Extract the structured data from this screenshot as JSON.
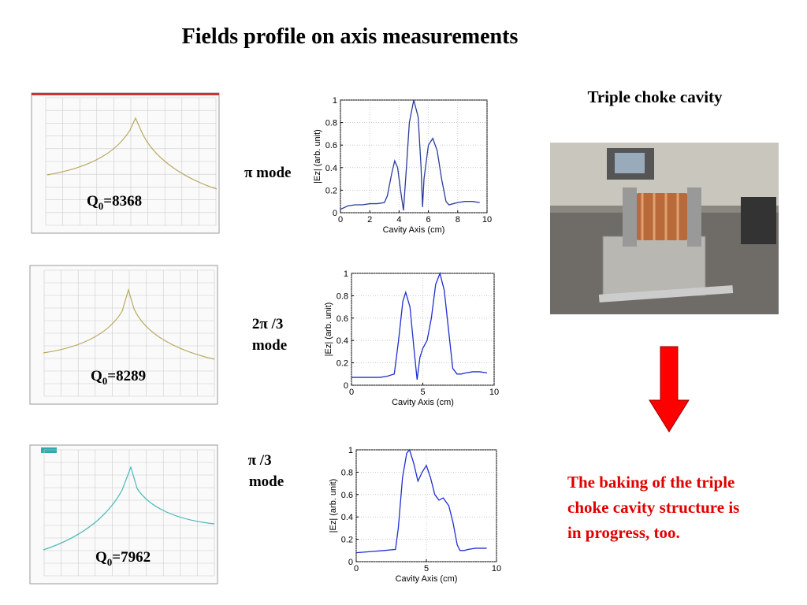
{
  "title": "Fields profile on axis measurements",
  "cavity_title": "Triple choke cavity",
  "modes": [
    {
      "label_lines": [
        "π mode"
      ],
      "q": {
        "symbol": "Q",
        "sub": "0",
        "value": "=8368"
      }
    },
    {
      "label_lines": [
        "2π /3",
        "mode"
      ],
      "q": {
        "symbol": "Q",
        "sub": "0",
        "value": "=8289"
      }
    },
    {
      "label_lines": [
        "π /3",
        "mode"
      ],
      "q": {
        "symbol": "Q",
        "sub": "0",
        "value": "=7962"
      }
    }
  ],
  "note_lines": [
    "The baking of the triple",
    "choke cavity structure is",
    "in progress, too."
  ],
  "chart_data": [
    {
      "type": "line",
      "xlabel": "Cavity Axis (cm)",
      "ylabel": "|Ez| (arb. unit)",
      "x": [
        0,
        0.5,
        1,
        1.5,
        2,
        2.5,
        3,
        3.2,
        3.5,
        3.7,
        3.9,
        4.1,
        4.3,
        4.5,
        4.7,
        5,
        5.3,
        5.5,
        5.6,
        5.7,
        6,
        6.3,
        6.6,
        6.9,
        7.2,
        7.4,
        7.7,
        8,
        8.5,
        9,
        9.5
      ],
      "series": [
        {
          "color": "#2b3c9c",
          "values": [
            0.03,
            0.06,
            0.07,
            0.07,
            0.08,
            0.08,
            0.09,
            0.15,
            0.35,
            0.46,
            0.4,
            0.2,
            0.02,
            0.4,
            0.8,
            1.0,
            0.85,
            0.4,
            0.05,
            0.3,
            0.6,
            0.66,
            0.55,
            0.3,
            0.1,
            0.07,
            0.08,
            0.09,
            0.1,
            0.1,
            0.09
          ]
        }
      ],
      "xlim": [
        0,
        10
      ],
      "ylim": [
        0,
        1
      ],
      "xticks": [
        0,
        2,
        4,
        6,
        8,
        10
      ],
      "yticks": [
        0,
        0.2,
        0.4,
        0.6,
        0.8,
        1
      ],
      "grid": true
    },
    {
      "type": "line",
      "xlabel": "Cavity Axis (cm)",
      "ylabel": "|Ez| (arb. unit)",
      "x": [
        0,
        1,
        2,
        2.5,
        3,
        3.3,
        3.6,
        3.8,
        4.1,
        4.4,
        4.6,
        4.8,
        5,
        5.3,
        5.6,
        5.9,
        6.2,
        6.5,
        6.8,
        7.1,
        7.4,
        7.7,
        8,
        8.5,
        9,
        9.5
      ],
      "series": [
        {
          "color": "#1f2fd0",
          "values": [
            0.07,
            0.07,
            0.07,
            0.08,
            0.1,
            0.4,
            0.75,
            0.83,
            0.7,
            0.3,
            0.05,
            0.25,
            0.33,
            0.4,
            0.6,
            0.9,
            1.0,
            0.85,
            0.5,
            0.15,
            0.1,
            0.1,
            0.11,
            0.12,
            0.12,
            0.11
          ]
        }
      ],
      "xlim": [
        0,
        10
      ],
      "ylim": [
        0,
        1
      ],
      "xticks": [
        0,
        5,
        10
      ],
      "yticks": [
        0,
        0.2,
        0.4,
        0.6,
        0.8,
        1
      ],
      "grid": true
    },
    {
      "type": "line",
      "xlabel": "Cavity Axis (cm)",
      "ylabel": "|Ez| (arb. unit)",
      "x": [
        0,
        1,
        2,
        2.8,
        3,
        3.3,
        3.6,
        3.8,
        4.1,
        4.4,
        4.7,
        5,
        5.3,
        5.6,
        5.9,
        6.2,
        6.6,
        6.9,
        7.2,
        7.4,
        7.7,
        8,
        8.5,
        9,
        9.3
      ],
      "series": [
        {
          "color": "#1f2fd0",
          "values": [
            0.08,
            0.09,
            0.1,
            0.11,
            0.3,
            0.75,
            0.97,
            1.0,
            0.88,
            0.72,
            0.8,
            0.86,
            0.75,
            0.6,
            0.55,
            0.57,
            0.5,
            0.35,
            0.15,
            0.1,
            0.1,
            0.11,
            0.12,
            0.12,
            0.12
          ]
        }
      ],
      "xlim": [
        0,
        10
      ],
      "ylim": [
        0,
        1
      ],
      "xticks": [
        0,
        5,
        10
      ],
      "yticks": [
        0,
        0.2,
        0.4,
        0.6,
        0.8,
        1
      ],
      "grid": true
    }
  ]
}
